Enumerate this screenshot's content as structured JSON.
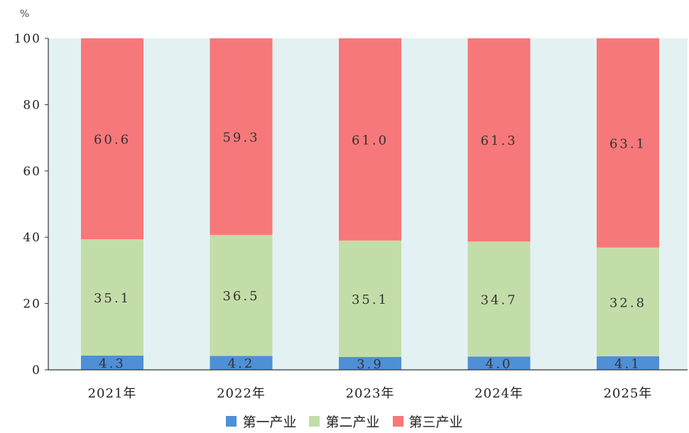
{
  "chart_data": {
    "type": "bar",
    "stacked": true,
    "unit": "%",
    "categories": [
      "2021年",
      "2022年",
      "2023年",
      "2024年",
      "2025年"
    ],
    "series": [
      {
        "name": "第一产业",
        "color": "#4f8fd6",
        "values": [
          4.3,
          4.2,
          3.9,
          4.0,
          4.1
        ],
        "labels": [
          "4.3",
          "4.2",
          "3.9",
          "4.0",
          "4.1"
        ]
      },
      {
        "name": "第二产业",
        "color": "#c3dda8",
        "values": [
          35.1,
          36.5,
          35.1,
          34.7,
          32.8
        ],
        "labels": [
          "35.1",
          "36.5",
          "35.1",
          "34.7",
          "32.8"
        ]
      },
      {
        "name": "第三产业",
        "color": "#f7787a",
        "values": [
          60.6,
          59.3,
          61.0,
          61.3,
          63.1
        ],
        "labels": [
          "60.6",
          "59.3",
          "61.0",
          "61.3",
          "63.1"
        ]
      }
    ],
    "ylim": [
      0,
      100
    ],
    "yticks": [
      0,
      20,
      40,
      60,
      80,
      100
    ],
    "plot_background": "#e3f1f3",
    "legend_position": "bottom",
    "grid": false
  }
}
